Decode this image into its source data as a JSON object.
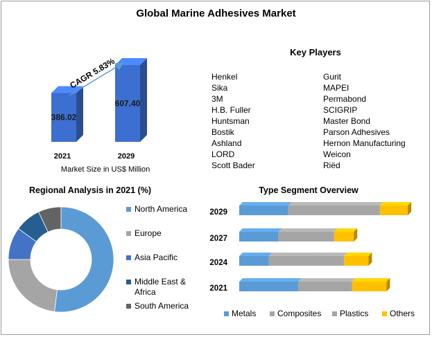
{
  "title": "Global Marine Adhesives Market",
  "market": {
    "cagr_label": "CAGR 5.83%",
    "caption": "Market Size in US$ Million",
    "bars": [
      {
        "year": "2021",
        "value": 386.02,
        "label": "386.02"
      },
      {
        "year": "2029",
        "value": 607.4,
        "label": "607.40"
      }
    ],
    "color": "#3c6fcf"
  },
  "key_players": {
    "title": "Key Players",
    "col1": [
      "Henkel",
      "Sika",
      "3M",
      "H.B. Fuller",
      "Huntsman",
      "Bostik",
      "Ashland",
      "LORD",
      "Scott Bader"
    ],
    "col2": [
      "Gurit",
      "MAPEI",
      "Permabond",
      "SCIGRIP",
      "Master Bond",
      "Parson Adhesives",
      "Hernon Manufacturing",
      "Weicon",
      "Riёd"
    ]
  },
  "chart_data": [
    {
      "type": "bar",
      "categories": [
        "2021",
        "2029"
      ],
      "values": [
        386.02,
        607.4
      ],
      "xlabel": "Market Size in US$ Million",
      "annotation": "CAGR 5.83%"
    },
    {
      "type": "pie",
      "title": "Regional Analysis in 2021 (%)",
      "labels": [
        "North America",
        "Europe",
        "Asia Pacific",
        "Middle East & Africa",
        "South America"
      ],
      "values": [
        52,
        23,
        10,
        8,
        7
      ],
      "colors": [
        "#5b9bd5",
        "#a5a5a5",
        "#4472c4",
        "#255e91",
        "#636363"
      ],
      "legend": "right"
    },
    {
      "type": "bar",
      "orientation": "horizontal",
      "stacked": true,
      "title": "Type Segment Overview",
      "categories": [
        "2029",
        "2027",
        "2024",
        "2021"
      ],
      "series": [
        {
          "name": "Metals",
          "color": "#5b9bd5",
          "values": [
            30,
            24,
            18,
            36
          ]
        },
        {
          "name": "Composites",
          "color": "#a5a5a5",
          "values": [
            55,
            33,
            45,
            32
          ]
        },
        {
          "name": "Plastics",
          "color": "#a5a5a5",
          "values": [
            1,
            1,
            1,
            1
          ]
        },
        {
          "name": "Others",
          "color": "#ffc000",
          "values": [
            17,
            12,
            15,
            21
          ]
        }
      ],
      "legend": "bottom"
    }
  ]
}
